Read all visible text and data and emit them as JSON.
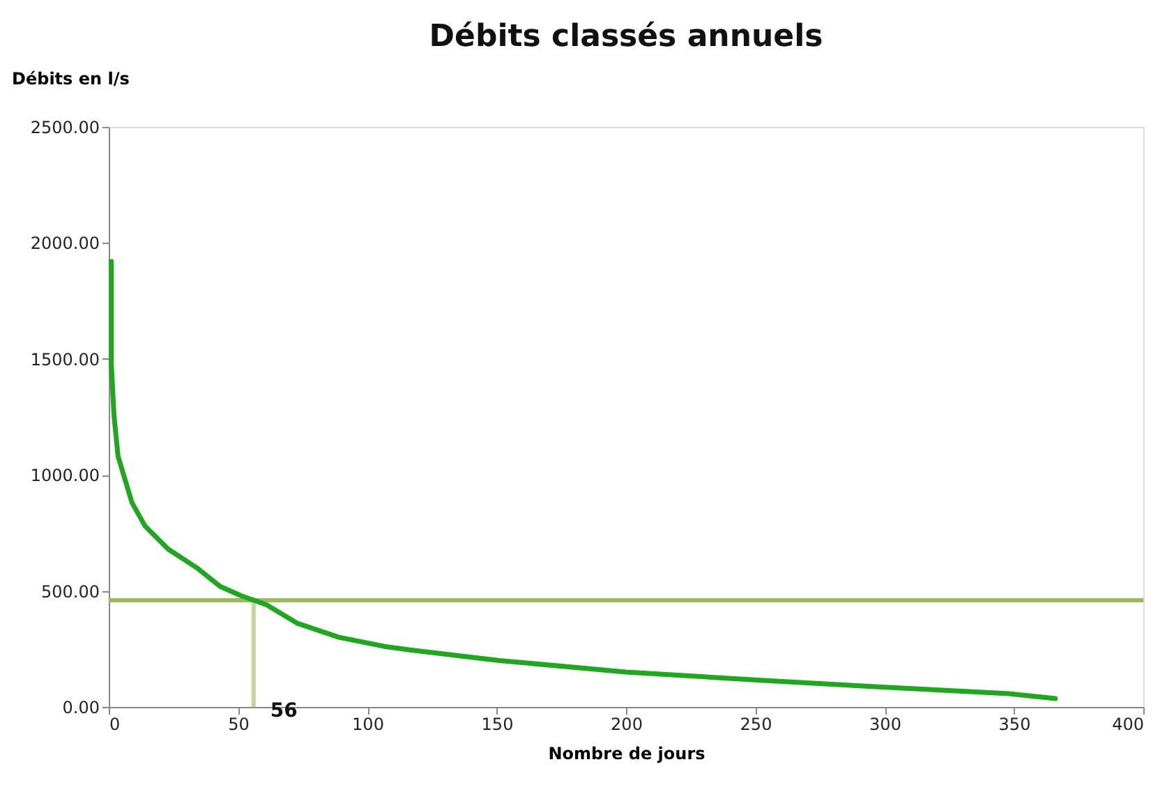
{
  "chart_data": {
    "type": "line",
    "title": "Débits classés annuels",
    "xlabel": "Nombre de jours",
    "ylabel": "Débits en l/s",
    "series": [
      {
        "color": "#1ea81e",
        "x": [
          1,
          1,
          2,
          3.6,
          9,
          14,
          23,
          34,
          43,
          51,
          61,
          73,
          89,
          107,
          117,
          151,
          200,
          252,
          300,
          348,
          366
        ],
        "values": [
          1920,
          1480,
          1260,
          1080,
          880,
          780,
          680,
          600,
          520,
          480,
          440,
          360,
          300,
          260,
          245,
          200,
          150,
          115,
          85,
          57,
          36
        ]
      }
    ],
    "xlim": [
      0,
      400
    ],
    "xticks": [
      0,
      50,
      100,
      150,
      200,
      250,
      300,
      350,
      400
    ],
    "ylim": [
      0,
      2500
    ],
    "yticks": [
      {
        "value": 0,
        "label": "0.00"
      },
      {
        "value": 500,
        "label": "500.00"
      },
      {
        "value": 1000,
        "label": "1000.00"
      },
      {
        "value": 1500,
        "label": "1500.00"
      },
      {
        "value": 2000,
        "label": "2000.00"
      },
      {
        "value": 2500,
        "label": "2500.00"
      }
    ],
    "ref_lines": [
      {
        "axis": "y",
        "value": 460,
        "color": "#9bbb59"
      },
      {
        "axis": "x",
        "value": 56,
        "label": "56",
        "color": "#c4d79b"
      }
    ],
    "grid": false,
    "line_style": "solid",
    "marker": "none"
  }
}
